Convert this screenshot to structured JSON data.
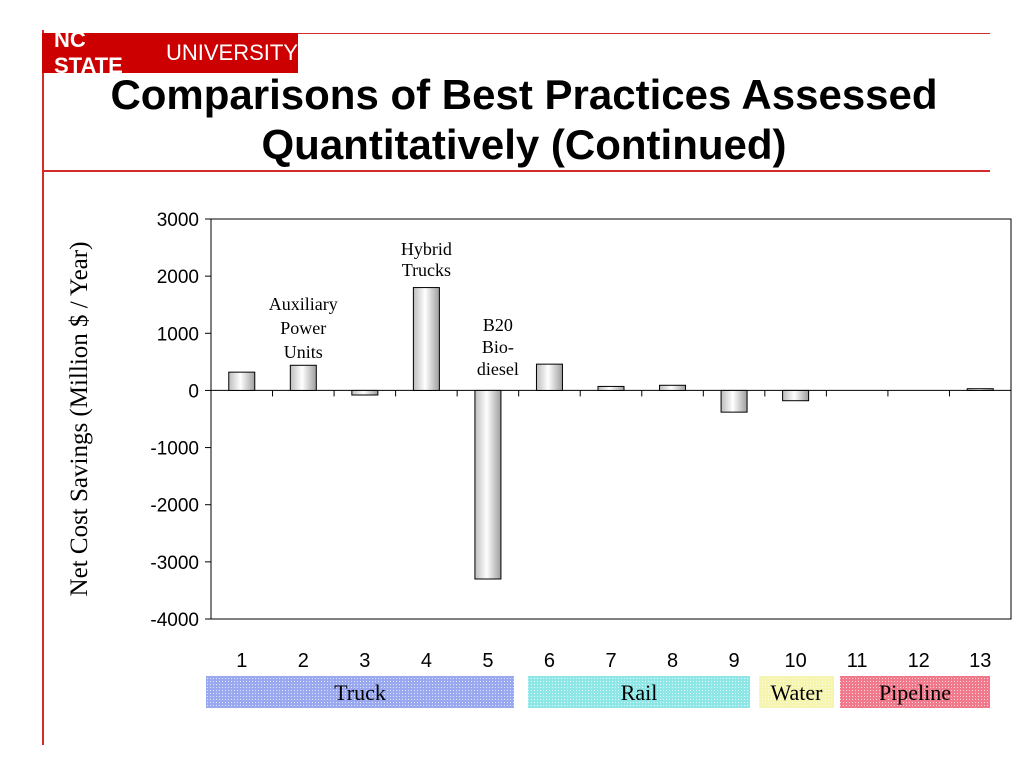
{
  "header": {
    "logo_bold": "NC STATE",
    "logo_light": "UNIVERSITY",
    "title_line1": "Comparisons of Best Practices Assessed",
    "title_line2": "Quantitatively (Continued)"
  },
  "colors": {
    "accent_red": "#cc0000",
    "bar_fill": "#e6e6e6",
    "truck_band": "#9aa8f0",
    "rail_band": "#8fe6e6",
    "water_band": "#f5f5b0",
    "pipeline_band": "#f07a8c"
  },
  "chart_data": {
    "type": "bar",
    "categories": [
      "1",
      "2",
      "3",
      "4",
      "5",
      "6",
      "7",
      "8",
      "9",
      "10",
      "11",
      "12",
      "13"
    ],
    "values": [
      320,
      440,
      -80,
      1800,
      -3300,
      460,
      70,
      90,
      -380,
      -180,
      0,
      0,
      30
    ],
    "ylabel": "Net Cost Savings (Million $ / Year)",
    "xlabel": "",
    "ylim": [
      -4000,
      3000
    ],
    "yticks": [
      "3000",
      "2000",
      "1000",
      "0",
      "-1000",
      "-2000",
      "-3000",
      "-4000"
    ],
    "grid": false,
    "annotations": [
      {
        "category": "2",
        "lines": [
          "Auxiliary",
          "Power",
          "Units"
        ]
      },
      {
        "category": "4",
        "lines": [
          "Hybrid",
          "Trucks"
        ]
      },
      {
        "category": "5",
        "lines": [
          "B20",
          "Bio-",
          "diesel"
        ]
      }
    ],
    "groups": [
      {
        "label": "Truck",
        "from": "1",
        "to": "5",
        "color": "#9aa8f0"
      },
      {
        "label": "Rail",
        "from": "6",
        "to": "9",
        "color": "#8fe6e6"
      },
      {
        "label": "Water",
        "from": "10",
        "to": "10",
        "color": "#f5f5b0"
      },
      {
        "label": "Pipeline",
        "from": "11",
        "to": "13",
        "color": "#f07a8c"
      }
    ]
  }
}
